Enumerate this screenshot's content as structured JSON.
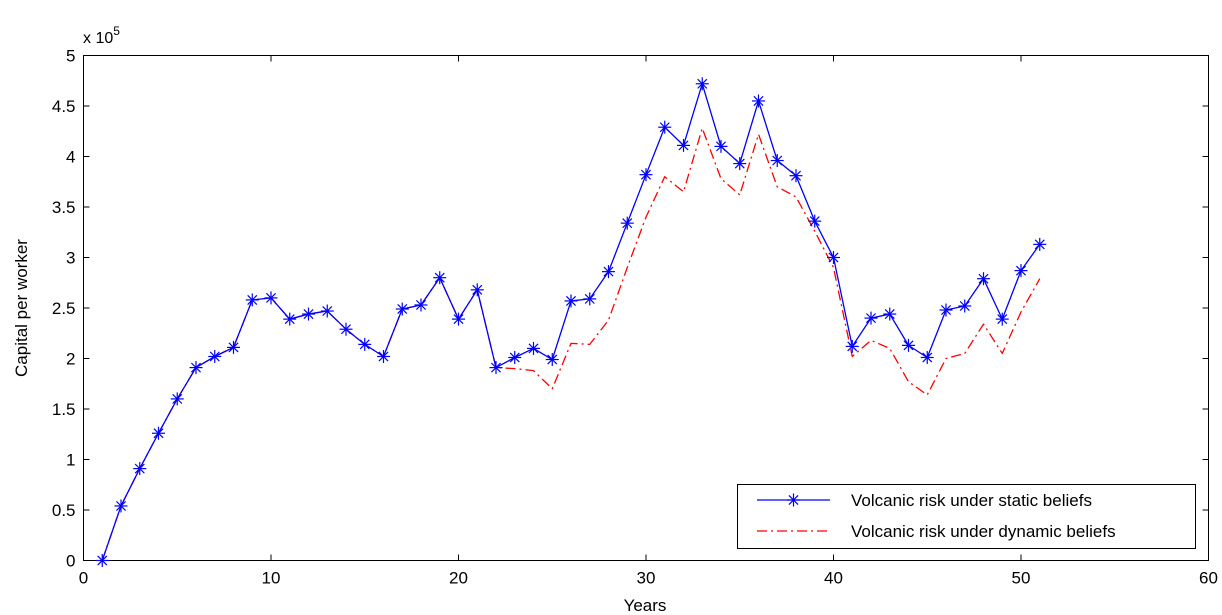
{
  "chart_data": {
    "type": "line",
    "xlabel": "Years",
    "ylabel": "Capital per worker",
    "exponent_label": {
      "base": "x 10",
      "power": "5"
    },
    "xlim": [
      0,
      60
    ],
    "ylim": [
      0,
      5
    ],
    "xticks": [
      0,
      10,
      20,
      30,
      40,
      50,
      60
    ],
    "xtick_labels": [
      "0",
      "10",
      "20",
      "30",
      "40",
      "50",
      "60"
    ],
    "yticks": [
      0,
      0.5,
      1,
      1.5,
      2,
      2.5,
      3,
      3.5,
      4,
      4.5,
      5
    ],
    "ytick_labels": [
      "0",
      "0.5",
      "1",
      "1.5",
      "2",
      "2.5",
      "3",
      "3.5",
      "4",
      "4.5",
      "5"
    ],
    "grid": false,
    "legend_position": "bottom-right",
    "series": [
      {
        "name": "Volcanic risk under static beliefs",
        "color": "#0000ff",
        "line_style": "solid",
        "marker": "asterisk",
        "x": [
          1,
          2,
          3,
          4,
          5,
          6,
          7,
          8,
          9,
          10,
          11,
          12,
          13,
          14,
          15,
          16,
          17,
          18,
          19,
          20,
          21,
          22,
          23,
          24,
          25,
          26,
          27,
          28,
          29,
          30,
          31,
          32,
          33,
          34,
          35,
          36,
          37,
          38,
          39,
          40,
          41,
          42,
          43,
          44,
          45,
          46,
          47,
          48,
          49,
          50,
          51
        ],
        "values": [
          0,
          0.54,
          0.91,
          1.26,
          1.6,
          1.91,
          2.02,
          2.11,
          2.58,
          2.6,
          2.39,
          2.44,
          2.47,
          2.29,
          2.14,
          2.02,
          2.49,
          2.53,
          2.8,
          2.39,
          2.68,
          1.91,
          2.01,
          2.1,
          1.99,
          2.57,
          2.59,
          2.86,
          3.34,
          3.82,
          4.29,
          4.11,
          4.72,
          4.1,
          3.93,
          4.55,
          3.96,
          3.81,
          3.36,
          3.0,
          2.12,
          2.4,
          2.44,
          2.13,
          2.01,
          2.48,
          2.52,
          2.79,
          2.39,
          2.87,
          3.13
        ]
      },
      {
        "name": "Volcanic risk under dynamic beliefs",
        "color": "#ff0000",
        "line_style": "dash-dot",
        "marker": "none",
        "x": [
          1,
          2,
          3,
          4,
          5,
          6,
          7,
          8,
          9,
          10,
          11,
          12,
          13,
          14,
          15,
          16,
          17,
          18,
          19,
          20,
          21,
          22,
          23,
          24,
          25,
          26,
          27,
          28,
          29,
          30,
          31,
          32,
          33,
          34,
          35,
          36,
          37,
          38,
          39,
          40,
          41,
          42,
          43,
          44,
          45,
          46,
          47,
          48,
          49,
          50,
          51
        ],
        "values": [
          0,
          0.54,
          0.91,
          1.26,
          1.6,
          1.91,
          2.02,
          2.11,
          2.58,
          2.6,
          2.39,
          2.44,
          2.47,
          2.29,
          2.14,
          2.02,
          2.49,
          2.53,
          2.8,
          2.39,
          2.68,
          1.91,
          1.9,
          1.88,
          1.7,
          2.15,
          2.14,
          2.38,
          2.9,
          3.4,
          3.8,
          3.65,
          4.28,
          3.78,
          3.62,
          4.22,
          3.7,
          3.6,
          3.26,
          2.9,
          2.02,
          2.18,
          2.1,
          1.77,
          1.64,
          2.0,
          2.05,
          2.34,
          2.05,
          2.46,
          2.79
        ]
      }
    ]
  }
}
